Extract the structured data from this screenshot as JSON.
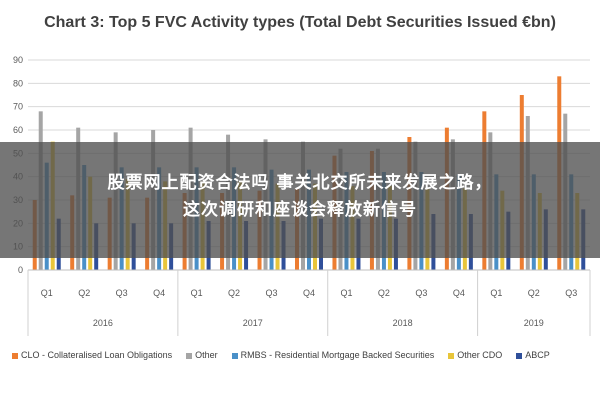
{
  "chart_data": {
    "type": "bar",
    "title": "Chart 3: Top 5 FVC Activity types (Total Debt Securities Issued €bn)",
    "xlabel": "",
    "ylabel": "",
    "ylim": [
      0,
      90
    ],
    "yticks": [
      0,
      10,
      20,
      30,
      40,
      50,
      60,
      70,
      80,
      90
    ],
    "grid": true,
    "legend_position": "bottom",
    "categories": [
      "Q1",
      "Q2",
      "Q3",
      "Q4",
      "Q1",
      "Q2",
      "Q3",
      "Q4",
      "Q1",
      "Q2",
      "Q3",
      "Q4",
      "Q1",
      "Q2",
      "Q3"
    ],
    "groups": [
      {
        "label": "2016",
        "count": 4
      },
      {
        "label": "2017",
        "count": 4
      },
      {
        "label": "2018",
        "count": 4
      },
      {
        "label": "2019",
        "count": 3
      }
    ],
    "series": [
      {
        "name": "CLO - Collateralised Loan Obligations",
        "color": "#ED7D31",
        "values": [
          30,
          32,
          31,
          31,
          33,
          33,
          34,
          35,
          49,
          51,
          57,
          61,
          68,
          75,
          83
        ]
      },
      {
        "name": "Other",
        "color": "#A5A5A5",
        "values": [
          68,
          61,
          59,
          60,
          61,
          58,
          56,
          55,
          52,
          52,
          55,
          56,
          59,
          66,
          67
        ]
      },
      {
        "name": "RMBS - Residential Mortgage Backed Securities",
        "color": "#4A90C8",
        "values": [
          46,
          45,
          44,
          44,
          44,
          44,
          43,
          43,
          42,
          42,
          42,
          41,
          41,
          41,
          41
        ]
      },
      {
        "name": "Other CDO",
        "color": "#E8C53A",
        "values": [
          55,
          40,
          39,
          38,
          38,
          38,
          37,
          37,
          36,
          36,
          35,
          35,
          34,
          33,
          33
        ]
      },
      {
        "name": "ABCP",
        "color": "#2F4F9A",
        "values": [
          22,
          20,
          20,
          20,
          21,
          21,
          21,
          22,
          22,
          22,
          24,
          24,
          25,
          26,
          26
        ]
      }
    ]
  },
  "overlay": {
    "line1": "股票网上配资合法吗 事关北交所未来发展之路，",
    "line2": "这次调研和座谈会释放新信号"
  }
}
